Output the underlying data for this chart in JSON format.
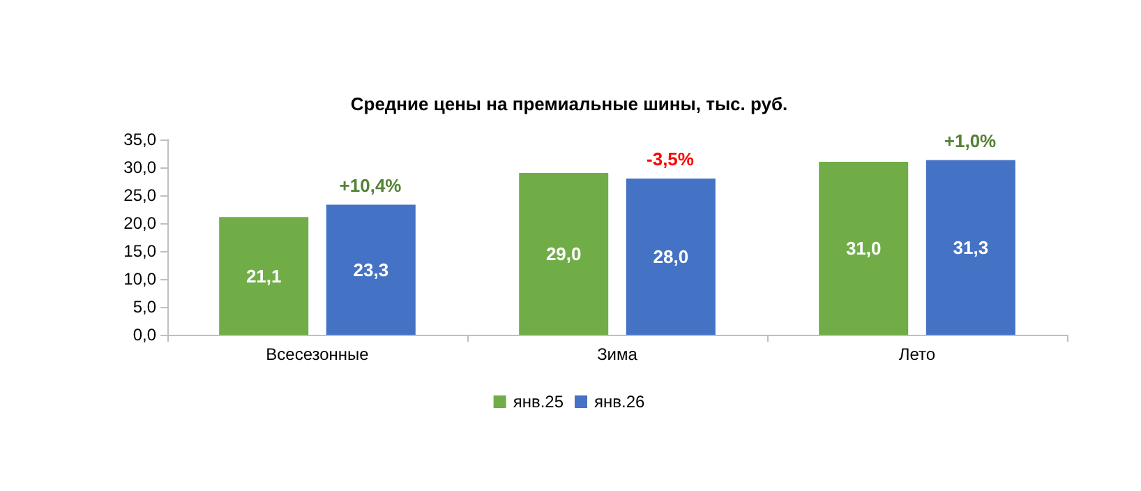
{
  "chart_data": {
    "type": "bar",
    "title": "Средние цены на премиальные шины, тыс. руб.",
    "categories": [
      "Всесезонные",
      "Зима",
      "Лето"
    ],
    "series": [
      {
        "name": "янв.25",
        "color": "#70ad47",
        "values": [
          21.1,
          29.0,
          31.0
        ],
        "value_labels": [
          "21,1",
          "29,0",
          "31,0"
        ]
      },
      {
        "name": "янв.26",
        "color": "#4472c4",
        "values": [
          23.3,
          28.0,
          31.3
        ],
        "value_labels": [
          "23,3",
          "28,0",
          "31,3"
        ]
      }
    ],
    "ylim": [
      0,
      35
    ],
    "yticks": [
      {
        "value": 0,
        "label": "0,0"
      },
      {
        "value": 5,
        "label": "5,0"
      },
      {
        "value": 10,
        "label": "10,0"
      },
      {
        "value": 15,
        "label": "15,0"
      },
      {
        "value": 20,
        "label": "20,0"
      },
      {
        "value": 25,
        "label": "25,0"
      },
      {
        "value": 30,
        "label": "30,0"
      },
      {
        "value": 35,
        "label": "35,0"
      }
    ],
    "annotations": [
      "+10,4%",
      "-3,5%",
      "+1,0%"
    ],
    "grid": false,
    "legend": "bottom"
  }
}
